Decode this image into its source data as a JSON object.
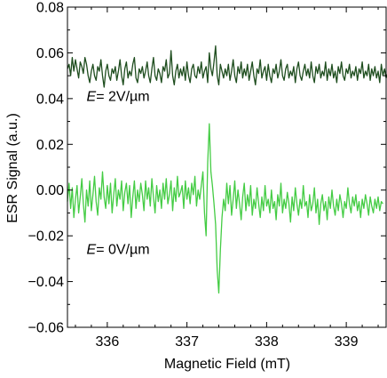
{
  "chart_data": {
    "type": "line",
    "title": "",
    "xlabel": "Magnetic Field (mT)",
    "ylabel": "ESR Signal (a.u.)",
    "xlim": [
      335.5,
      339.5
    ],
    "ylim": [
      -0.06,
      0.08
    ],
    "xticks": [
      336,
      337,
      338,
      339
    ],
    "xtick_labels": [
      "336",
      "337",
      "338",
      "339"
    ],
    "yticks": [
      -0.06,
      -0.04,
      -0.02,
      0.0,
      0.02,
      0.04,
      0.06,
      0.08
    ],
    "ytick_labels": [
      "−0.06",
      "−0.04",
      "−0.02",
      "0.00",
      "0.02",
      "0.04",
      "0.06",
      "0.08"
    ],
    "grid": false,
    "legend": "none",
    "colors": {
      "axis": "#000000",
      "series_2v": "#1e4d1e",
      "series_0v": "#44cc44"
    },
    "series": [
      {
        "name": "E = 2V/µm",
        "x_start": 335.5,
        "x_step": 0.02,
        "values": [
          0.053,
          0.055,
          0.05,
          0.058,
          0.052,
          0.057,
          0.053,
          0.049,
          0.056,
          0.054,
          0.051,
          0.058,
          0.055,
          0.05,
          0.047,
          0.052,
          0.055,
          0.05,
          0.048,
          0.054,
          0.052,
          0.057,
          0.05,
          0.045,
          0.052,
          0.055,
          0.05,
          0.048,
          0.053,
          0.051,
          0.054,
          0.048,
          0.052,
          0.057,
          0.05,
          0.046,
          0.053,
          0.056,
          0.049,
          0.052,
          0.05,
          0.055,
          0.058,
          0.049,
          0.047,
          0.053,
          0.051,
          0.054,
          0.049,
          0.052,
          0.056,
          0.05,
          0.047,
          0.053,
          0.058,
          0.05,
          0.048,
          0.053,
          0.051,
          0.047,
          0.054,
          0.052,
          0.057,
          0.049,
          0.051,
          0.061,
          0.05,
          0.046,
          0.052,
          0.055,
          0.049,
          0.053,
          0.05,
          0.054,
          0.048,
          0.056,
          0.05,
          0.047,
          0.053,
          0.055,
          0.05,
          0.049,
          0.054,
          0.051,
          0.056,
          0.049,
          0.052,
          0.054,
          0.047,
          0.06,
          0.053,
          0.05,
          0.056,
          0.063,
          0.05,
          0.046,
          0.055,
          0.052,
          0.049,
          0.053,
          0.05,
          0.055,
          0.048,
          0.052,
          0.057,
          0.05,
          0.047,
          0.054,
          0.051,
          0.056,
          0.049,
          0.053,
          0.05,
          0.055,
          0.048,
          0.052,
          0.056,
          0.05,
          0.046,
          0.053,
          0.051,
          0.057,
          0.049,
          0.052,
          0.054,
          0.048,
          0.055,
          0.05,
          0.047,
          0.053,
          0.051,
          0.055,
          0.049,
          0.052,
          0.057,
          0.05,
          0.048,
          0.053,
          0.055,
          0.049,
          0.052,
          0.05,
          0.054,
          0.047,
          0.053,
          0.056,
          0.05,
          0.048,
          0.052,
          0.055,
          0.05,
          0.053,
          0.049,
          0.056,
          0.05,
          0.047,
          0.054,
          0.051,
          0.055,
          0.049,
          0.052,
          0.05,
          0.056,
          0.048,
          0.053,
          0.05,
          0.055,
          0.049,
          0.052,
          0.047,
          0.054,
          0.051,
          0.056,
          0.05,
          0.048,
          0.053,
          0.051,
          0.055,
          0.049,
          0.052,
          0.05,
          0.054,
          0.048,
          0.053,
          0.051,
          0.056,
          0.049,
          0.052,
          0.05,
          0.055,
          0.048,
          0.053,
          0.05,
          0.054,
          0.049,
          0.052,
          0.047,
          0.055,
          0.05,
          0.053,
          0.049,
          0.051,
          0.046
        ]
      },
      {
        "name": "E = 0V/µm",
        "x_start": 335.5,
        "x_step": 0.02,
        "values": [
          -0.005,
          0.003,
          -0.008,
          0.001,
          -0.012,
          -0.004,
          0.002,
          -0.01,
          -0.003,
          0.005,
          -0.006,
          -0.014,
          0.0,
          -0.007,
          0.004,
          -0.009,
          -0.002,
          0.006,
          -0.005,
          -0.011,
          0.001,
          -0.004,
          0.008,
          -0.003,
          -0.008,
          0.002,
          -0.006,
          0.003,
          -0.01,
          -0.002,
          0.005,
          -0.007,
          0.0,
          -0.004,
          0.004,
          -0.009,
          -0.001,
          0.003,
          -0.006,
          0.002,
          -0.012,
          -0.003,
          0.004,
          -0.008,
          0.0,
          -0.005,
          0.003,
          -0.002,
          -0.009,
          0.004,
          -0.004,
          0.001,
          -0.007,
          0.005,
          -0.003,
          -0.01,
          0.002,
          -0.005,
          0.0,
          -0.008,
          0.003,
          -0.004,
          0.005,
          -0.006,
          -0.002,
          0.004,
          -0.009,
          0.001,
          -0.005,
          0.006,
          -0.003,
          -0.001,
          0.002,
          -0.008,
          0.004,
          -0.004,
          0.001,
          -0.006,
          0.003,
          -0.002,
          0.006,
          -0.007,
          0.0,
          -0.004,
          0.002,
          0.008,
          -0.01,
          -0.02,
          0.012,
          0.029,
          0.008,
          0.002,
          -0.006,
          -0.015,
          -0.035,
          -0.045,
          -0.026,
          -0.012,
          -0.004,
          -0.009,
          0.003,
          -0.006,
          0.002,
          -0.011,
          -0.004,
          0.004,
          -0.008,
          0.0,
          -0.006,
          -0.013,
          -0.003,
          0.003,
          -0.009,
          -0.002,
          -0.007,
          0.002,
          -0.011,
          -0.004,
          -0.008,
          0.001,
          -0.006,
          -0.012,
          -0.003,
          -0.009,
          0.002,
          -0.007,
          -0.004,
          -0.01,
          0.0,
          -0.008,
          -0.005,
          -0.013,
          -0.002,
          -0.007,
          0.003,
          -0.01,
          -0.004,
          -0.008,
          -0.001,
          -0.006,
          -0.014,
          -0.003,
          -0.009,
          0.001,
          -0.006,
          -0.011,
          -0.004,
          -0.008,
          0.002,
          -0.007,
          -0.005,
          -0.012,
          -0.002,
          -0.009,
          -0.006,
          0.001,
          -0.01,
          -0.004,
          -0.015,
          -0.006,
          -0.002,
          -0.009,
          -0.005,
          -0.013,
          -0.003,
          -0.008,
          0.0,
          -0.007,
          -0.011,
          -0.004,
          -0.009,
          -0.002,
          -0.006,
          -0.012,
          -0.005,
          -0.008,
          0.001,
          -0.006,
          -0.01,
          -0.003,
          -0.007,
          -0.002,
          -0.009,
          -0.005,
          -0.012,
          -0.004,
          -0.008,
          -0.002,
          -0.006,
          -0.011,
          -0.003,
          -0.007,
          -0.01,
          -0.004,
          -0.008,
          -0.003,
          -0.009,
          -0.005,
          -0.006
        ]
      }
    ],
    "annotations": [
      {
        "name": "label-2v",
        "italic": "E",
        "text": "= 2V/µm",
        "x": 335.74,
        "y": 0.039
      },
      {
        "name": "label-0v",
        "italic": "E",
        "text": "= 0V/µm",
        "x": 335.74,
        "y": -0.028
      }
    ]
  }
}
